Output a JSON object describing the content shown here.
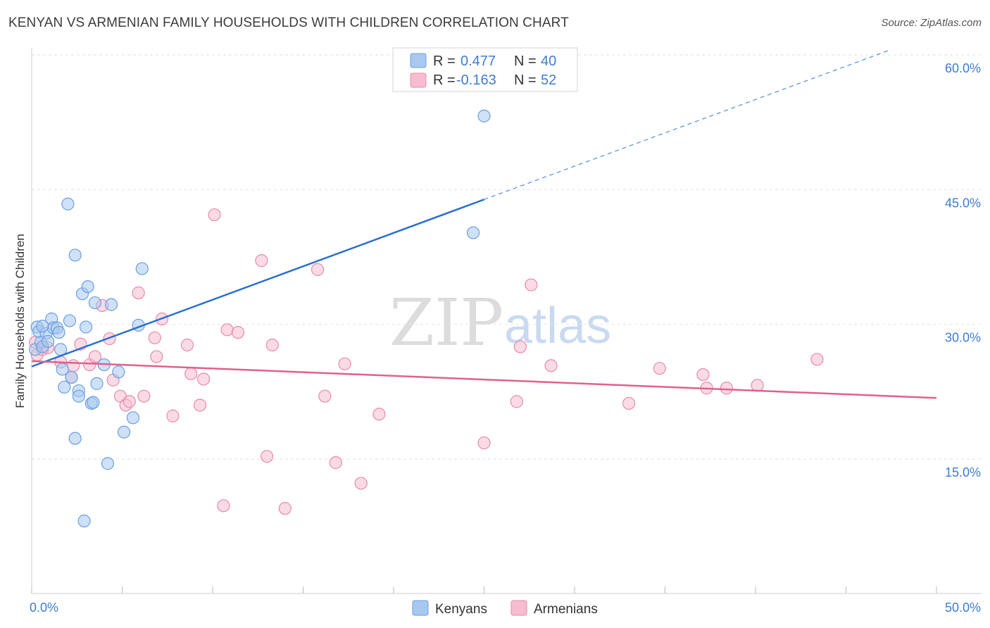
{
  "title": "KENYAN VS ARMENIAN FAMILY HOUSEHOLDS WITH CHILDREN CORRELATION CHART",
  "source": "Source: ZipAtlas.com",
  "watermark": {
    "part1": "ZIP",
    "part2": "atlas"
  },
  "colors": {
    "kenyans_fill": "#a8c8f0",
    "kenyans_stroke": "#6b9fe0",
    "kenyans_line": "#2a6fcf",
    "armenians_fill": "#f6bdd0",
    "armenians_stroke": "#e88aaa",
    "armenians_line": "#e0608e",
    "tick_text": "#3f7bd3",
    "grid": "#e2e2e2"
  },
  "legend": {
    "rows": [
      {
        "r_label": "R =",
        "r_value": "0.477",
        "n_label": "N =",
        "n_value": "40"
      },
      {
        "r_label": "R =",
        "r_value": "-0.163",
        "n_label": "N =",
        "n_value": "52"
      }
    ]
  },
  "chart_data": {
    "type": "scatter",
    "title": "KENYAN VS ARMENIAN FAMILY HOUSEHOLDS WITH CHILDREN CORRELATION CHART",
    "xlabel": "",
    "ylabel": "Family Households with Children",
    "xlim": [
      0,
      50
    ],
    "ylim": [
      0,
      63
    ],
    "x_tick_labels": [
      {
        "value": 0,
        "label": "0.0%"
      },
      {
        "value": 50,
        "label": "50.0%"
      }
    ],
    "y_tick_labels": [
      {
        "value": 15,
        "label": "15.0%"
      },
      {
        "value": 30,
        "label": "30.0%"
      },
      {
        "value": 45,
        "label": "45.0%"
      },
      {
        "value": 60,
        "label": "60.0%"
      }
    ],
    "legend_position": "top-center",
    "series": [
      {
        "name": "Kenyans",
        "r": 0.477,
        "n": 40,
        "trend": {
          "x0": 0,
          "y0": 25.3,
          "x1": 25,
          "y1": 43.9,
          "dash_to_x": 47.5,
          "dash_to_y": 60.6
        },
        "points": [
          [
            0.2,
            27.2
          ],
          [
            0.3,
            29.7
          ],
          [
            0.4,
            29.2
          ],
          [
            0.5,
            28.0
          ],
          [
            0.6,
            27.5
          ],
          [
            0.8,
            29.0
          ],
          [
            0.9,
            28.1
          ],
          [
            1.1,
            30.6
          ],
          [
            1.2,
            29.6
          ],
          [
            1.4,
            29.6
          ],
          [
            1.5,
            29.1
          ],
          [
            1.6,
            27.2
          ],
          [
            1.7,
            25.0
          ],
          [
            1.8,
            23.0
          ],
          [
            2.0,
            43.4
          ],
          [
            2.1,
            30.4
          ],
          [
            2.2,
            24.1
          ],
          [
            2.4,
            37.7
          ],
          [
            2.4,
            17.3
          ],
          [
            2.6,
            22.6
          ],
          [
            2.6,
            22.0
          ],
          [
            2.8,
            33.4
          ],
          [
            2.9,
            8.1
          ],
          [
            3.0,
            29.7
          ],
          [
            3.1,
            34.2
          ],
          [
            3.3,
            21.2
          ],
          [
            3.4,
            21.3
          ],
          [
            3.5,
            32.4
          ],
          [
            3.6,
            23.4
          ],
          [
            4.0,
            25.5
          ],
          [
            4.2,
            14.5
          ],
          [
            4.4,
            32.2
          ],
          [
            4.8,
            24.7
          ],
          [
            5.1,
            18.0
          ],
          [
            5.6,
            19.6
          ],
          [
            5.9,
            29.9
          ],
          [
            6.1,
            36.2
          ],
          [
            25.0,
            53.2
          ],
          [
            24.4,
            40.2
          ],
          [
            0.6,
            29.8
          ]
        ]
      },
      {
        "name": "Armenians",
        "r": -0.163,
        "n": 52,
        "trend": {
          "x0": 0,
          "y0": 25.9,
          "x1": 50,
          "y1": 21.8
        },
        "points": [
          [
            0.2,
            28.0
          ],
          [
            0.3,
            26.6
          ],
          [
            0.6,
            27.2
          ],
          [
            1.6,
            25.8
          ],
          [
            2.3,
            25.4
          ],
          [
            2.2,
            24.1
          ],
          [
            2.7,
            27.8
          ],
          [
            3.2,
            25.5
          ],
          [
            3.5,
            26.4
          ],
          [
            3.9,
            32.1
          ],
          [
            4.3,
            28.4
          ],
          [
            4.5,
            23.8
          ],
          [
            4.9,
            22.0
          ],
          [
            5.2,
            21.0
          ],
          [
            5.4,
            21.4
          ],
          [
            5.9,
            33.5
          ],
          [
            6.2,
            22.0
          ],
          [
            6.8,
            28.5
          ],
          [
            6.9,
            26.4
          ],
          [
            7.2,
            30.6
          ],
          [
            7.8,
            19.8
          ],
          [
            8.6,
            27.7
          ],
          [
            8.8,
            24.5
          ],
          [
            9.3,
            21.0
          ],
          [
            9.5,
            23.9
          ],
          [
            10.1,
            42.2
          ],
          [
            10.6,
            9.8
          ],
          [
            10.8,
            29.4
          ],
          [
            11.4,
            29.1
          ],
          [
            12.7,
            37.1
          ],
          [
            13.0,
            15.3
          ],
          [
            13.3,
            27.7
          ],
          [
            14.0,
            9.5
          ],
          [
            15.8,
            36.1
          ],
          [
            16.2,
            22.0
          ],
          [
            16.8,
            14.6
          ],
          [
            17.3,
            25.6
          ],
          [
            18.2,
            12.3
          ],
          [
            19.2,
            20.0
          ],
          [
            25.0,
            16.8
          ],
          [
            26.8,
            21.4
          ],
          [
            27.0,
            27.5
          ],
          [
            27.6,
            34.4
          ],
          [
            28.7,
            25.4
          ],
          [
            33.0,
            21.2
          ],
          [
            34.7,
            25.1
          ],
          [
            37.1,
            24.4
          ],
          [
            37.3,
            22.9
          ],
          [
            38.4,
            22.9
          ],
          [
            40.1,
            23.2
          ],
          [
            43.4,
            26.1
          ],
          [
            0.9,
            27.4
          ]
        ]
      }
    ]
  },
  "bottom_legend": [
    {
      "label": "Kenyans"
    },
    {
      "label": "Armenians"
    }
  ]
}
